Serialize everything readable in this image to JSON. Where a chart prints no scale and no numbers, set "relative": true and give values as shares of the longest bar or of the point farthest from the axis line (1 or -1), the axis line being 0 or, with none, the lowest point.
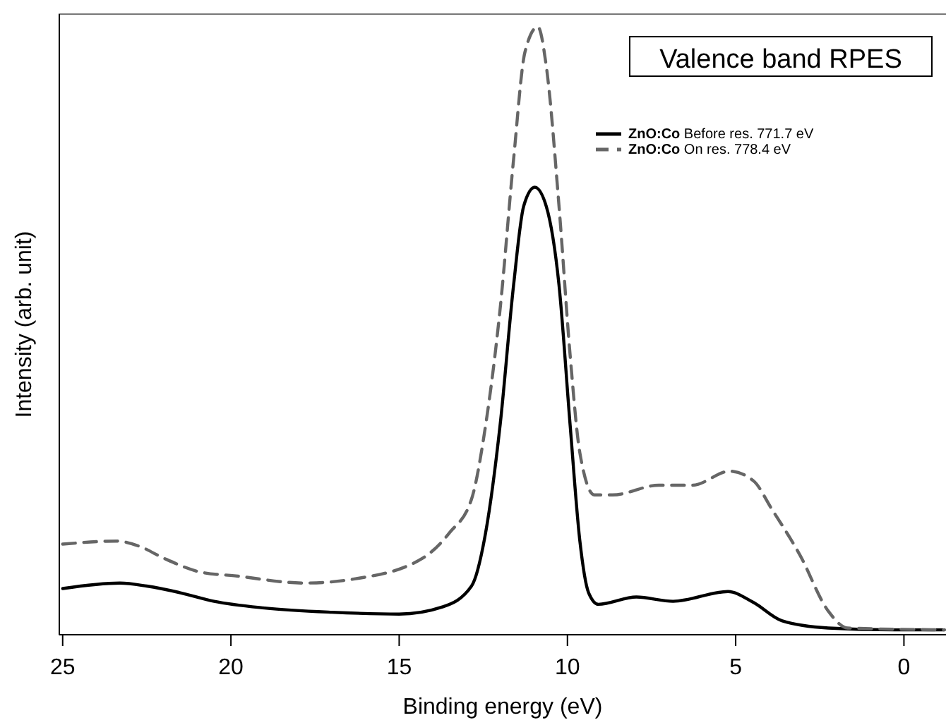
{
  "chart_data": {
    "type": "line",
    "title": "Valence band RPES",
    "xlabel": "Binding energy (eV)",
    "ylabel": "Intensity (arb. unit)",
    "relative": true,
    "xlim": [
      25.1,
      -1.25
    ],
    "xticks": [
      25,
      20,
      15,
      10,
      5,
      0
    ],
    "grid": false,
    "legend": "top right",
    "marker": "none",
    "series": [
      {
        "name": "ZnO:Co Before res. 771.7 eV",
        "color": "#000000",
        "line_style": "solid",
        "x": [
          25,
          23.3,
          22.5,
          21.5,
          20.5,
          19,
          17,
          15,
          13.7,
          12.85,
          12.43,
          12.0,
          11.6,
          11.3,
          10.97,
          10.63,
          10.25,
          9.92,
          9.63,
          9.37,
          9.08,
          7.95,
          6.86,
          5.23,
          4.47,
          3.63,
          2.25,
          0.28,
          -1.2
        ],
        "values": [
          0.076,
          0.085,
          0.08,
          0.069,
          0.055,
          0.044,
          0.037,
          0.034,
          0.046,
          0.08,
          0.168,
          0.345,
          0.575,
          0.705,
          0.736,
          0.705,
          0.575,
          0.345,
          0.154,
          0.069,
          0.05,
          0.062,
          0.055,
          0.071,
          0.053,
          0.023,
          0.011,
          0.008,
          0.008
        ]
      },
      {
        "name": "ZnO:Co On res. 778.4 eV",
        "color": "#666666",
        "line_style": "dashed",
        "x": [
          25,
          23.4,
          22.7,
          22,
          20.9,
          19.9,
          17.8,
          16.3,
          14.3,
          13.5,
          12.85,
          12.43,
          12.0,
          11.6,
          11.26,
          10.88,
          10.63,
          10.25,
          9.92,
          9.63,
          9.2,
          8.66,
          7.28,
          6.28,
          5.18,
          4.47,
          3.93,
          3.09,
          2.25,
          1.67,
          -1.2
        ],
        "values": [
          0.149,
          0.154,
          0.145,
          0.126,
          0.103,
          0.097,
          0.085,
          0.092,
          0.126,
          0.168,
          0.223,
          0.345,
          0.536,
          0.782,
          0.959,
          1.0,
          0.936,
          0.705,
          0.46,
          0.299,
          0.23,
          0.23,
          0.246,
          0.246,
          0.269,
          0.253,
          0.207,
          0.131,
          0.039,
          0.011,
          0.008
        ]
      }
    ]
  }
}
